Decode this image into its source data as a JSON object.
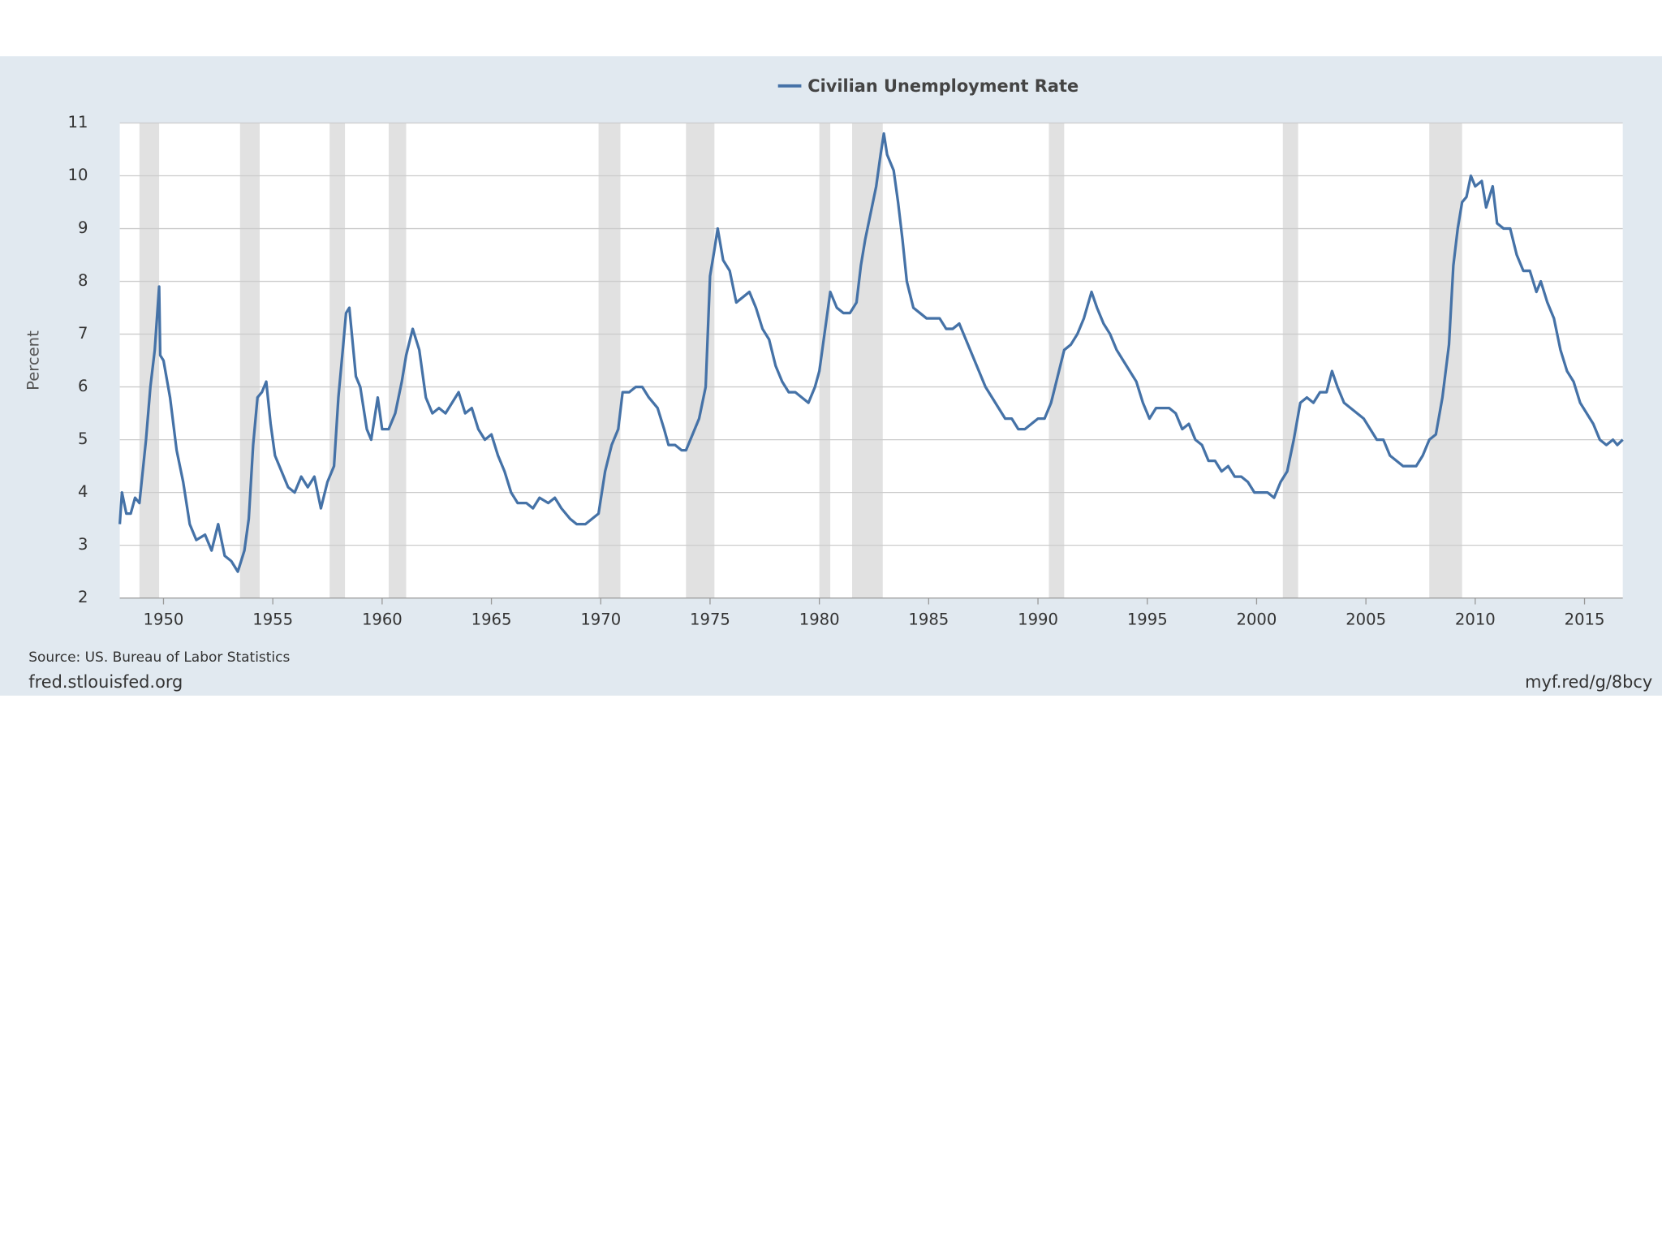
{
  "chart_data": {
    "type": "line",
    "legend": "Civilian Unemployment Rate",
    "ylabel": "Percent",
    "source": "Source: US. Bureau of Labor Statistics",
    "site": "fred.stlouisfed.org",
    "link": "myf.red/g/8bcy",
    "xlim": [
      1948,
      2016.75
    ],
    "xticks": [
      1950,
      1955,
      1960,
      1965,
      1970,
      1975,
      1980,
      1985,
      1990,
      1995,
      2000,
      2005,
      2010,
      2015
    ],
    "ylim": [
      2,
      11
    ],
    "yticks": [
      2,
      3,
      4,
      5,
      6,
      7,
      8,
      9,
      10,
      11
    ],
    "grid": true,
    "recession_color": "#e1e1e1",
    "recessions": [
      [
        1948.9,
        1949.8
      ],
      [
        1953.5,
        1954.4
      ],
      [
        1957.6,
        1958.3
      ],
      [
        1960.3,
        1961.1
      ],
      [
        1969.9,
        1970.9
      ],
      [
        1973.9,
        1975.2
      ],
      [
        1980.0,
        1980.5
      ],
      [
        1981.5,
        1982.9
      ],
      [
        1990.5,
        1991.2
      ],
      [
        2001.2,
        2001.9
      ],
      [
        2007.9,
        2009.4
      ]
    ],
    "x": [
      1948.0,
      1948.1,
      1948.3,
      1948.5,
      1948.7,
      1948.9,
      1949.2,
      1949.4,
      1949.6,
      1949.8,
      1949.85,
      1950.0,
      1950.3,
      1950.6,
      1950.9,
      1951.2,
      1951.5,
      1951.9,
      1952.2,
      1952.5,
      1952.8,
      1953.1,
      1953.4,
      1953.7,
      1953.9,
      1954.1,
      1954.3,
      1954.5,
      1954.7,
      1954.9,
      1955.1,
      1955.4,
      1955.7,
      1956.0,
      1956.3,
      1956.6,
      1956.9,
      1957.2,
      1957.5,
      1957.8,
      1958.0,
      1958.2,
      1958.35,
      1958.5,
      1958.8,
      1959.0,
      1959.3,
      1959.5,
      1959.8,
      1960.0,
      1960.3,
      1960.6,
      1960.9,
      1961.1,
      1961.4,
      1961.7,
      1962.0,
      1962.3,
      1962.6,
      1962.9,
      1963.2,
      1963.5,
      1963.8,
      1964.1,
      1964.4,
      1964.7,
      1965.0,
      1965.3,
      1965.6,
      1965.9,
      1966.2,
      1966.6,
      1966.9,
      1967.2,
      1967.6,
      1967.9,
      1968.2,
      1968.6,
      1968.9,
      1969.3,
      1969.6,
      1969.9,
      1970.2,
      1970.5,
      1970.8,
      1971.0,
      1971.3,
      1971.6,
      1971.9,
      1972.2,
      1972.6,
      1972.9,
      1973.1,
      1973.4,
      1973.7,
      1973.9,
      1974.2,
      1974.5,
      1974.8,
      1975.0,
      1975.2,
      1975.35,
      1975.6,
      1975.9,
      1976.2,
      1976.5,
      1976.8,
      1977.1,
      1977.4,
      1977.7,
      1978.0,
      1978.3,
      1978.6,
      1978.9,
      1979.2,
      1979.5,
      1979.8,
      1980.0,
      1980.2,
      1980.4,
      1980.5,
      1980.8,
      1981.1,
      1981.4,
      1981.7,
      1981.9,
      1982.1,
      1982.4,
      1982.6,
      1982.8,
      1982.95,
      1983.1,
      1983.4,
      1983.6,
      1983.8,
      1984.0,
      1984.3,
      1984.6,
      1984.9,
      1985.2,
      1985.5,
      1985.8,
      1986.1,
      1986.4,
      1986.7,
      1987.0,
      1987.3,
      1987.6,
      1987.9,
      1988.2,
      1988.5,
      1988.8,
      1989.1,
      1989.4,
      1989.7,
      1990.0,
      1990.3,
      1990.6,
      1990.9,
      1991.2,
      1991.5,
      1991.8,
      1992.1,
      1992.45,
      1992.7,
      1993.0,
      1993.3,
      1993.6,
      1993.9,
      1994.2,
      1994.5,
      1994.8,
      1995.1,
      1995.4,
      1995.7,
      1996.0,
      1996.3,
      1996.6,
      1996.9,
      1997.2,
      1997.5,
      1997.8,
      1998.1,
      1998.4,
      1998.7,
      1999.0,
      1999.3,
      1999.6,
      1999.9,
      2000.2,
      2000.5,
      2000.8,
      2001.1,
      2001.4,
      2001.7,
      2002.0,
      2002.3,
      2002.6,
      2002.9,
      2003.2,
      2003.45,
      2003.7,
      2004.0,
      2004.3,
      2004.6,
      2004.9,
      2005.2,
      2005.5,
      2005.8,
      2006.1,
      2006.4,
      2006.7,
      2007.0,
      2007.3,
      2007.6,
      2007.9,
      2008.2,
      2008.5,
      2008.8,
      2009.0,
      2009.2,
      2009.4,
      2009.6,
      2009.8,
      2010.0,
      2010.3,
      2010.5,
      2010.8,
      2011.0,
      2011.3,
      2011.6,
      2011.9,
      2012.2,
      2012.5,
      2012.8,
      2013.0,
      2013.3,
      2013.6,
      2013.9,
      2014.2,
      2014.5,
      2014.8,
      2015.1,
      2015.4,
      2015.7,
      2016.0,
      2016.3,
      2016.5,
      2016.75
    ],
    "series": [
      {
        "name": "Civilian Unemployment Rate",
        "color": "#4572a7",
        "values": [
          3.4,
          4.0,
          3.6,
          3.6,
          3.9,
          3.8,
          5.0,
          6.0,
          6.7,
          7.9,
          6.6,
          6.5,
          5.8,
          4.8,
          4.2,
          3.4,
          3.1,
          3.2,
          2.9,
          3.4,
          2.8,
          2.7,
          2.5,
          2.9,
          3.5,
          4.9,
          5.8,
          5.9,
          6.1,
          5.3,
          4.7,
          4.4,
          4.1,
          4.0,
          4.3,
          4.1,
          4.3,
          3.7,
          4.2,
          4.5,
          5.8,
          6.7,
          7.4,
          7.5,
          6.2,
          6.0,
          5.2,
          5.0,
          5.8,
          5.2,
          5.2,
          5.5,
          6.1,
          6.6,
          7.1,
          6.7,
          5.8,
          5.5,
          5.6,
          5.5,
          5.7,
          5.9,
          5.5,
          5.6,
          5.2,
          5.0,
          5.1,
          4.7,
          4.4,
          4.0,
          3.8,
          3.8,
          3.7,
          3.9,
          3.8,
          3.9,
          3.7,
          3.5,
          3.4,
          3.4,
          3.5,
          3.6,
          4.4,
          4.9,
          5.2,
          5.9,
          5.9,
          6.0,
          6.0,
          5.8,
          5.6,
          5.2,
          4.9,
          4.9,
          4.8,
          4.8,
          5.1,
          5.4,
          6.0,
          8.1,
          8.6,
          9.0,
          8.4,
          8.2,
          7.6,
          7.7,
          7.8,
          7.5,
          7.1,
          6.9,
          6.4,
          6.1,
          5.9,
          5.9,
          5.8,
          5.7,
          6.0,
          6.3,
          6.9,
          7.5,
          7.8,
          7.5,
          7.4,
          7.4,
          7.6,
          8.3,
          8.8,
          9.4,
          9.8,
          10.4,
          10.8,
          10.4,
          10.1,
          9.5,
          8.8,
          8.0,
          7.5,
          7.4,
          7.3,
          7.3,
          7.3,
          7.1,
          7.1,
          7.2,
          6.9,
          6.6,
          6.3,
          6.0,
          5.8,
          5.6,
          5.4,
          5.4,
          5.2,
          5.2,
          5.3,
          5.4,
          5.4,
          5.7,
          6.2,
          6.7,
          6.8,
          7.0,
          7.3,
          7.8,
          7.5,
          7.2,
          7.0,
          6.7,
          6.5,
          6.3,
          6.1,
          5.7,
          5.4,
          5.6,
          5.6,
          5.6,
          5.5,
          5.2,
          5.3,
          5.0,
          4.9,
          4.6,
          4.6,
          4.4,
          4.5,
          4.3,
          4.3,
          4.2,
          4.0,
          4.0,
          4.0,
          3.9,
          4.2,
          4.4,
          5.0,
          5.7,
          5.8,
          5.7,
          5.9,
          5.9,
          6.3,
          6.0,
          5.7,
          5.6,
          5.5,
          5.4,
          5.2,
          5.0,
          5.0,
          4.7,
          4.6,
          4.5,
          4.5,
          4.5,
          4.7,
          5.0,
          5.1,
          5.8,
          6.8,
          8.3,
          9.0,
          9.5,
          9.6,
          10.0,
          9.8,
          9.9,
          9.4,
          9.8,
          9.1,
          9.0,
          9.0,
          8.5,
          8.2,
          8.2,
          7.8,
          8.0,
          7.6,
          7.3,
          6.7,
          6.3,
          6.1,
          5.7,
          5.5,
          5.3,
          5.0,
          4.9,
          5.0,
          4.9,
          5.0
        ]
      }
    ]
  }
}
